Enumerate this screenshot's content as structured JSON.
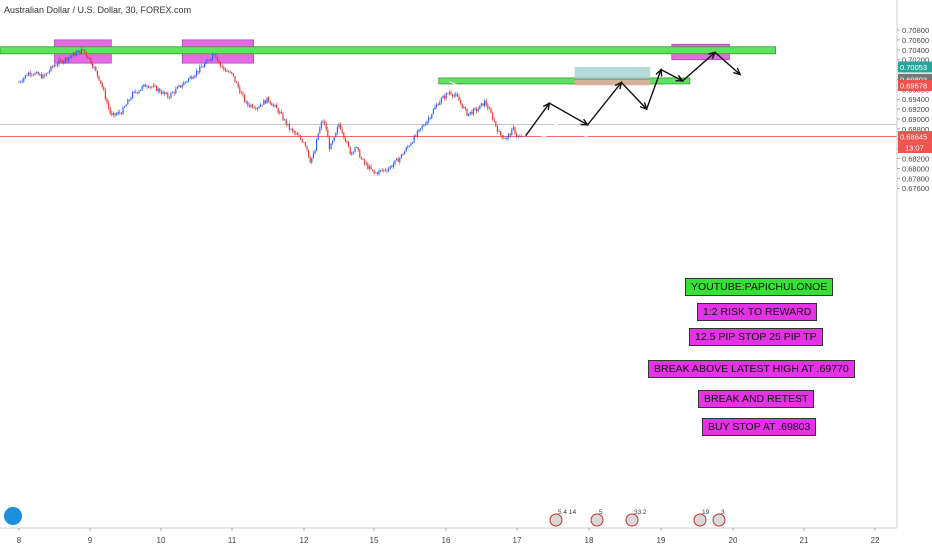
{
  "chart_title": "Australian Dollar / U.S. Dollar, 30, FOREX.com",
  "chart_data": {
    "type": "candlestick",
    "x_ticks": [
      "8",
      "9",
      "10",
      "11",
      "12",
      "15",
      "16",
      "17",
      "18",
      "19",
      "20",
      "21",
      "22"
    ],
    "y_ticks": [
      "0.70800",
      "0.70600",
      "0.70400",
      "0.70200",
      "0.70000",
      "0.69800",
      "0.69600",
      "0.69400",
      "0.69200",
      "0.69000",
      "0.68800",
      "0.68600",
      "0.68400",
      "0.68200",
      "0.68000",
      "0.67800",
      "0.67600"
    ],
    "ylim": [
      0.6757,
      0.7093
    ],
    "price_tags": [
      {
        "label": "0.70053",
        "value": 0.70053,
        "color": "#26a69a"
      },
      {
        "label": "0.69803",
        "value": 0.69803,
        "color": "#777777"
      },
      {
        "label": "0.69678",
        "value": 0.69678,
        "color": "#ef5350"
      },
      {
        "label": "0.68645",
        "value": 0.68645,
        "color": "#ef5350"
      }
    ],
    "countdown": "13:07",
    "current_price": 0.68645,
    "resistance_levels": [
      0.704,
      0.6977
    ],
    "gray_level": 0.6889,
    "entry": 0.69803,
    "stop": 0.69678,
    "target": 0.70053,
    "price_path": [
      {
        "day": 8.0,
        "price": 0.6975
      },
      {
        "day": 8.15,
        "price": 0.6995
      },
      {
        "day": 8.35,
        "price": 0.6985
      },
      {
        "day": 8.5,
        "price": 0.701
      },
      {
        "day": 8.7,
        "price": 0.7025
      },
      {
        "day": 8.9,
        "price": 0.704
      },
      {
        "day": 9.0,
        "price": 0.702
      },
      {
        "day": 9.15,
        "price": 0.6975
      },
      {
        "day": 9.3,
        "price": 0.6905
      },
      {
        "day": 9.45,
        "price": 0.6915
      },
      {
        "day": 9.6,
        "price": 0.695
      },
      {
        "day": 9.8,
        "price": 0.697
      },
      {
        "day": 9.95,
        "price": 0.696
      },
      {
        "day": 10.1,
        "price": 0.6945
      },
      {
        "day": 10.3,
        "price": 0.697
      },
      {
        "day": 10.5,
        "price": 0.6995
      },
      {
        "day": 10.65,
        "price": 0.7015
      },
      {
        "day": 10.75,
        "price": 0.7035
      },
      {
        "day": 10.85,
        "price": 0.7005
      },
      {
        "day": 11.0,
        "price": 0.699
      },
      {
        "day": 11.1,
        "price": 0.696
      },
      {
        "day": 11.2,
        "price": 0.693
      },
      {
        "day": 11.35,
        "price": 0.6925
      },
      {
        "day": 11.5,
        "price": 0.694
      },
      {
        "day": 11.65,
        "price": 0.6915
      },
      {
        "day": 11.8,
        "price": 0.688
      },
      {
        "day": 11.95,
        "price": 0.686
      },
      {
        "day": 12.1,
        "price": 0.6845
      },
      {
        "day": 12.25,
        "price": 0.6815
      },
      {
        "day": 12.45,
        "price": 0.683
      },
      {
        "day": 12.6,
        "price": 0.687
      },
      {
        "day": 12.8,
        "price": 0.6898
      },
      {
        "day": 12.95,
        "price": 0.688
      },
      {
        "day": 13.1,
        "price": 0.684
      },
      {
        "day": 13.3,
        "price": 0.686
      },
      {
        "day": 13.5,
        "price": 0.689
      },
      {
        "day": 13.65,
        "price": 0.6875
      },
      {
        "day": 13.8,
        "price": 0.6855
      },
      {
        "day": 14.0,
        "price": 0.683
      },
      {
        "day": 14.2,
        "price": 0.6845
      },
      {
        "day": 14.5,
        "price": 0.6815
      },
      {
        "day": 14.8,
        "price": 0.68
      },
      {
        "day": 15.0,
        "price": 0.679
      },
      {
        "day": 15.2,
        "price": 0.68
      },
      {
        "day": 15.35,
        "price": 0.682
      },
      {
        "day": 15.55,
        "price": 0.686
      },
      {
        "day": 15.75,
        "price": 0.69
      },
      {
        "day": 15.9,
        "price": 0.6935
      },
      {
        "day": 16.05,
        "price": 0.6955
      },
      {
        "day": 16.15,
        "price": 0.6945
      },
      {
        "day": 16.3,
        "price": 0.691
      },
      {
        "day": 16.45,
        "price": 0.692
      },
      {
        "day": 16.55,
        "price": 0.6935
      },
      {
        "day": 16.65,
        "price": 0.6905
      },
      {
        "day": 16.75,
        "price": 0.687
      },
      {
        "day": 16.85,
        "price": 0.686
      },
      {
        "day": 16.95,
        "price": 0.688
      },
      {
        "day": 17.0,
        "price": 0.6865
      },
      {
        "day": 17.08,
        "price": 0.6862
      }
    ],
    "annotations": [
      "YOUTUBE:PAPICHULONOE",
      "1:2 RISK TO REWARD",
      "12.5 PIP STOP 25 PIP TP",
      "BREAK ABOVE LATEST HIGH AT .69770",
      "BREAK AND RETEST",
      "BUY STOP AT .69803"
    ],
    "event_badges": [
      "5 4 14",
      "5",
      "33 2",
      "19",
      "3"
    ]
  },
  "colors": {
    "up_candle": "#2962ff",
    "down_candle": "#e53935",
    "support_zone": "#5fe25f",
    "supply_box": "#e35be3",
    "target_zone": "#9fcfcd",
    "stop_zone": "#f2a9a5",
    "note_green": "#33e233",
    "note_magenta": "#e433e4"
  }
}
